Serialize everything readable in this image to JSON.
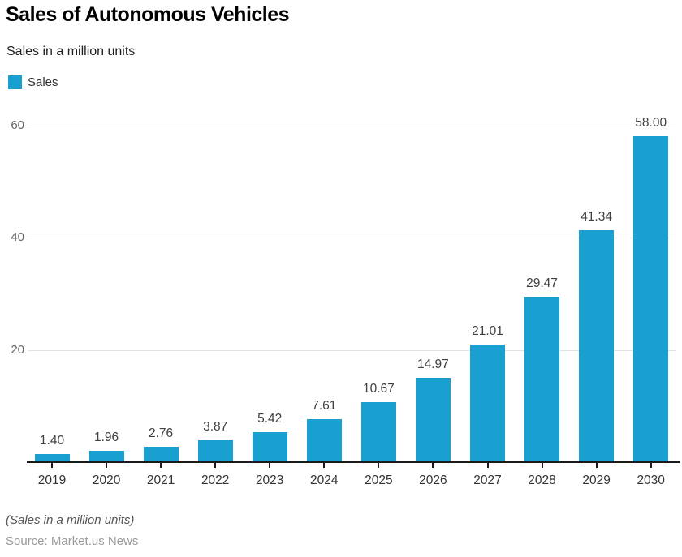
{
  "chart": {
    "title": "Sales of Autonomous Vehicles",
    "subtitle": "Sales in a million units",
    "legend_label": "Sales",
    "footnote": "(Sales in a million units)",
    "source": "Source: Market.us News"
  },
  "chart_data": {
    "type": "bar",
    "title": "Sales of Autonomous Vehicles",
    "subtitle": "Sales in a million units",
    "categories": [
      "2019",
      "2020",
      "2021",
      "2022",
      "2023",
      "2024",
      "2025",
      "2026",
      "2027",
      "2028",
      "2029",
      "2030"
    ],
    "series": [
      {
        "name": "Sales",
        "values": [
          1.4,
          1.96,
          2.76,
          3.87,
          5.42,
          7.61,
          10.67,
          14.97,
          21.01,
          29.47,
          41.34,
          58.0
        ]
      }
    ],
    "data_labels": [
      "1.40",
      "1.96",
      "2.76",
      "3.87",
      "5.42",
      "7.61",
      "10.67",
      "14.97",
      "21.01",
      "29.47",
      "41.34",
      "58.00"
    ],
    "xlabel": "",
    "ylabel": "Sales in a million units",
    "ylim": [
      0,
      62
    ],
    "yticks": [
      20,
      40,
      60
    ],
    "grid": true,
    "legend_position": "top-left",
    "bar_color": "#1A9FD1"
  },
  "colors": {
    "bar": "#1A9FD1",
    "gridline": "#e2e2e2",
    "axis": "#1a1a1a",
    "y_tick_text": "#666666",
    "x_tick_text": "#333333",
    "data_label_text": "#3f3f3f",
    "background": "#ffffff"
  }
}
